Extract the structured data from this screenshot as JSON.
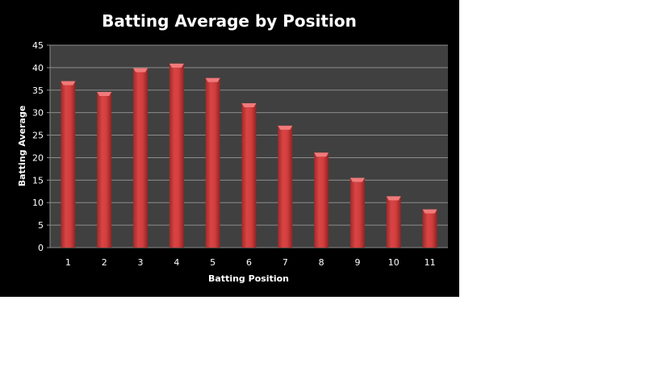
{
  "chart_data": {
    "type": "bar",
    "title": "Batting Average by Position",
    "xlabel": "Batting Position",
    "ylabel": "Batting Average",
    "categories": [
      "1",
      "2",
      "3",
      "4",
      "5",
      "6",
      "7",
      "8",
      "9",
      "10",
      "11"
    ],
    "values": [
      37.0,
      34.6,
      39.9,
      40.9,
      37.7,
      32.1,
      27.1,
      21.1,
      15.5,
      11.4,
      8.5
    ],
    "ylim": [
      0,
      45
    ],
    "yticks": [
      "0",
      "5",
      "10",
      "15",
      "20",
      "25",
      "30",
      "35",
      "40",
      "45"
    ],
    "grid": true,
    "legend": "none",
    "colors": {
      "bar": "#d63c3c",
      "plot_background": "#404040",
      "background": "#000000",
      "gridline": "#8c8c8c"
    }
  }
}
